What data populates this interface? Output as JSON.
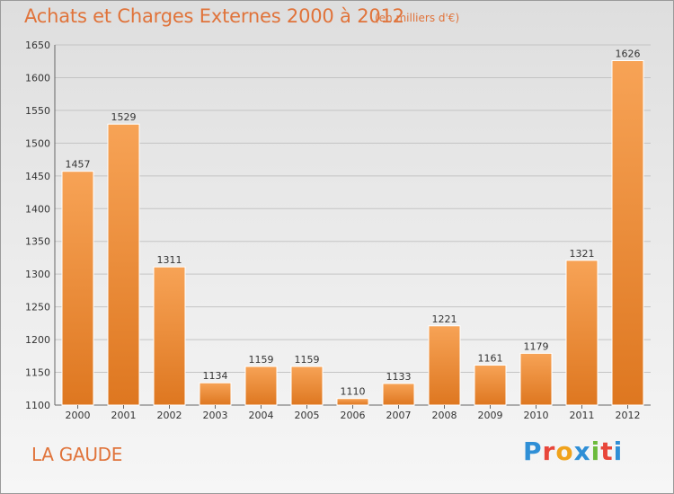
{
  "header": {
    "title": "Achats et Charges Externes 2000 à 2012",
    "subtitle": "(en milliers d'€)"
  },
  "footer": {
    "commune": "LA GAUDE",
    "logo": [
      "P",
      "r",
      "o",
      "x",
      "i",
      "t",
      "i"
    ]
  },
  "colors": {
    "accent": "#e0733a",
    "bar_top": "#f7a356",
    "bar_bottom": "#e07a22"
  },
  "chart_data": {
    "type": "bar",
    "title": "Achats et Charges Externes 2000 à 2012",
    "subtitle": "(en milliers d'€)",
    "categories": [
      "2000",
      "2001",
      "2002",
      "2003",
      "2004",
      "2005",
      "2006",
      "2007",
      "2008",
      "2009",
      "2010",
      "2011",
      "2012"
    ],
    "values": [
      1457,
      1529,
      1311,
      1134,
      1159,
      1159,
      1110,
      1133,
      1221,
      1161,
      1179,
      1321,
      1626
    ],
    "ylim": [
      1100,
      1650
    ],
    "yticks": [
      1100,
      1150,
      1200,
      1250,
      1300,
      1350,
      1400,
      1450,
      1500,
      1550,
      1600,
      1650
    ],
    "grid": true,
    "legend": "none"
  }
}
